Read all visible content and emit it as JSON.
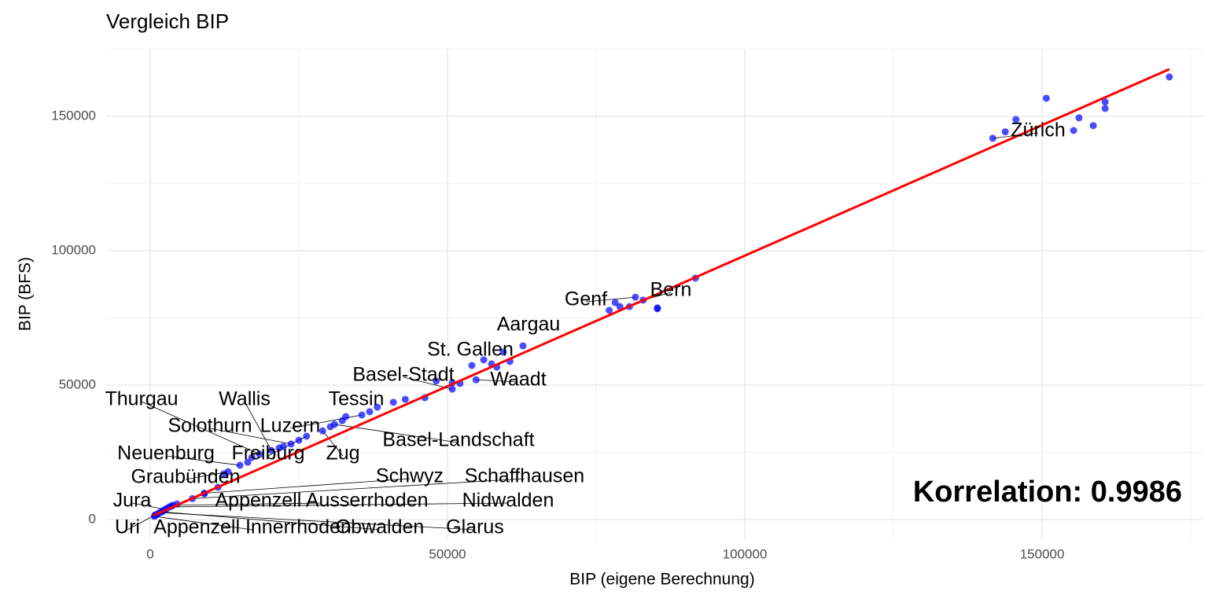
{
  "chart_data": {
    "type": "scatter",
    "title": "Vergleich BIP",
    "xlabel": "BIP (eigene Berechnung)",
    "ylabel": "BIP (BFS)",
    "annotation": "Korrelation: 0.9986",
    "xlim": [
      -7400,
      177100
    ],
    "ylim": [
      -7300,
      175100
    ],
    "xticks": [
      0,
      50000,
      100000,
      150000
    ],
    "yticks": [
      0,
      50000,
      100000,
      150000
    ],
    "grid": true,
    "minor_grid": true,
    "point_color": "#0000ff",
    "line": {
      "color": "#ff0000",
      "x": [
        500,
        171400
      ],
      "y": [
        1500,
        167500
      ]
    },
    "series": [
      {
        "name": "Zürich",
        "x": [
          141700,
          143800,
          145600,
          150700,
          155300,
          156200,
          158600,
          160600,
          160600,
          171400
        ],
        "y": [
          141800,
          144200,
          148800,
          156700,
          144700,
          149400,
          146500,
          155300,
          152900,
          164600
        ]
      },
      {
        "name": "Bern",
        "x": [
          82900,
          85300,
          85300,
          91700
        ],
        "y": [
          81600,
          78700,
          78400,
          89800
        ]
      },
      {
        "name": "Genf",
        "x": [
          81600,
          77200,
          78200,
          79000,
          80600
        ],
        "y": [
          82700,
          77800,
          80700,
          79200,
          79200
        ]
      },
      {
        "name": "Waadt",
        "x": [
          54800,
          58300,
          60500
        ],
        "y": [
          52000,
          56700,
          58800
        ]
      },
      {
        "name": "Aargau",
        "x": [
          62700,
          59400,
          57400
        ],
        "y": [
          64600,
          62300,
          57900
        ]
      },
      {
        "name": "St. Gallen",
        "x": [
          54100,
          56100,
          50800
        ],
        "y": [
          57300,
          59400,
          50900
        ]
      },
      {
        "name": "Basel-Stadt",
        "x": [
          50800,
          52100,
          48100
        ],
        "y": [
          48500,
          50600,
          51500
        ]
      },
      {
        "name": "Tessin",
        "x": [
          38200,
          40900,
          42900,
          46200
        ],
        "y": [
          41800,
          43600,
          44700,
          45300
        ]
      },
      {
        "name": "Luzern",
        "x": [
          35600,
          36900,
          32900
        ],
        "y": [
          38900,
          40100,
          38300
        ]
      },
      {
        "name": "Basel-Landschaft",
        "x": [
          31000,
          32300
        ],
        "y": [
          35400,
          36800
        ]
      },
      {
        "name": "Zug",
        "x": [
          29000,
          30300
        ],
        "y": [
          33000,
          34500
        ]
      },
      {
        "name": "Freiburg",
        "x": [
          26300,
          25000
        ],
        "y": [
          31000,
          29500
        ]
      },
      {
        "name": "Solothurn",
        "x": [
          23700,
          22400
        ],
        "y": [
          28100,
          27200
        ]
      },
      {
        "name": "Wallis",
        "x": [
          20400,
          21700
        ],
        "y": [
          25700,
          26600
        ]
      },
      {
        "name": "Thurgau",
        "x": [
          18400,
          17100
        ],
        "y": [
          24300,
          23100
        ]
      },
      {
        "name": "Neuenburg",
        "x": [
          15100,
          16400
        ],
        "y": [
          20200,
          21300
        ]
      },
      {
        "name": "Graubünden",
        "x": [
          13100,
          12400
        ],
        "y": [
          17800,
          17000
        ]
      },
      {
        "name": "Schwyz",
        "x": [
          9100,
          11400
        ],
        "y": [
          9800,
          12000
        ]
      },
      {
        "name": "Schaffhausen",
        "x": [
          7100,
          9100
        ],
        "y": [
          7800,
          9600
        ]
      },
      {
        "name": "Appenzell Ausserrhoden",
        "x": [
          3800,
          4500
        ],
        "y": [
          5300,
          5800
        ]
      },
      {
        "name": "Nidwalden",
        "x": [
          3200,
          3600
        ],
        "y": [
          4700,
          5000
        ]
      },
      {
        "name": "Jura",
        "x": [
          2500,
          2800
        ],
        "y": [
          3800,
          4100
        ]
      },
      {
        "name": "Obwalden",
        "x": [
          1900,
          2100
        ],
        "y": [
          2900,
          3200
        ]
      },
      {
        "name": "Glarus",
        "x": [
          1600,
          2000
        ],
        "y": [
          2600,
          2900
        ]
      },
      {
        "name": "Uri",
        "x": [
          900,
          1200
        ],
        "y": [
          1800,
          2000
        ]
      },
      {
        "name": "Appenzell Innerrhoden",
        "x": [
          700,
          800
        ],
        "y": [
          1200,
          1500
        ]
      }
    ]
  }
}
